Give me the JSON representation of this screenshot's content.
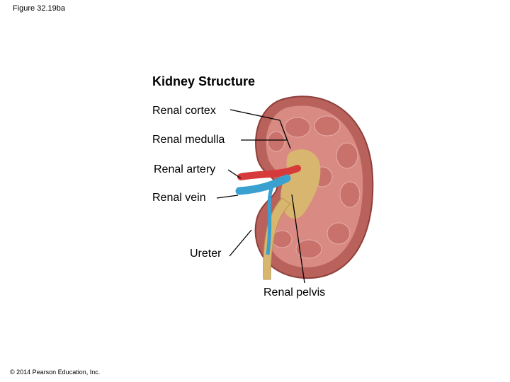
{
  "header": {
    "figure": "Figure 32.19ba"
  },
  "diagram": {
    "title": "Kidney Structure",
    "labels": [
      "Renal cortex",
      "Renal medulla",
      "Renal artery",
      "Renal vein",
      "Ureter",
      "Renal pelvis"
    ]
  },
  "footer": {
    "copyright": "© 2014 Pearson Education, Inc."
  }
}
